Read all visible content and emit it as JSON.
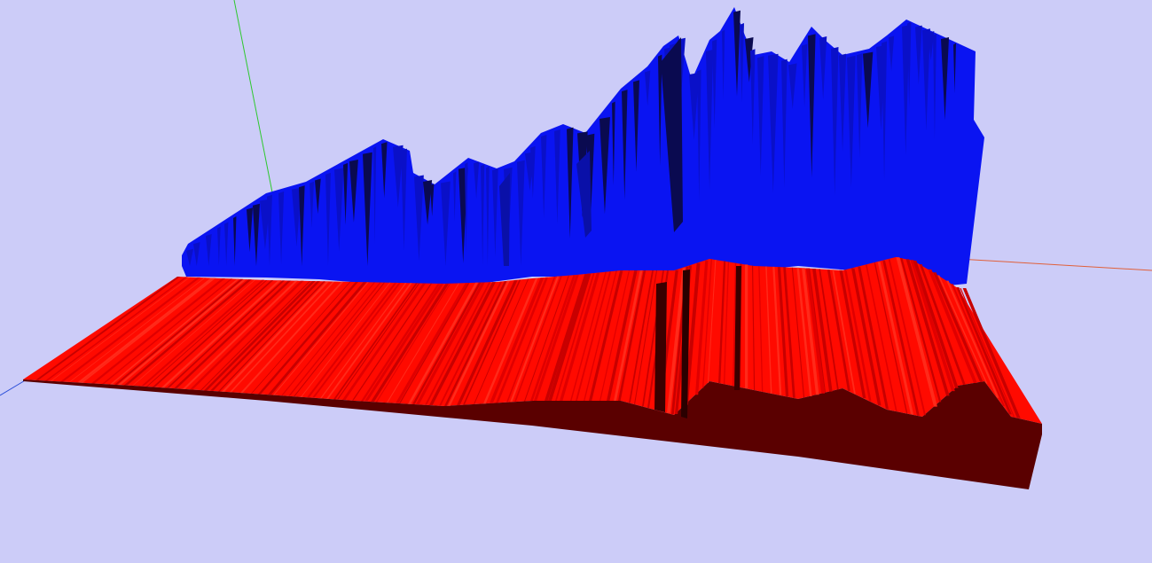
{
  "viewport": {
    "background": "#ccccf8"
  },
  "axes": {
    "x_color": "#e0603a",
    "y_color": "#2ec82e",
    "z_color": "#2b4fd8"
  },
  "surfaces": {
    "back_series_color": "#0a14f2",
    "back_series_shadow": "#0a0a50",
    "front_series_color": "#ff0a00",
    "front_series_dark": "#c80000",
    "front_series_side": "#5a0000"
  }
}
